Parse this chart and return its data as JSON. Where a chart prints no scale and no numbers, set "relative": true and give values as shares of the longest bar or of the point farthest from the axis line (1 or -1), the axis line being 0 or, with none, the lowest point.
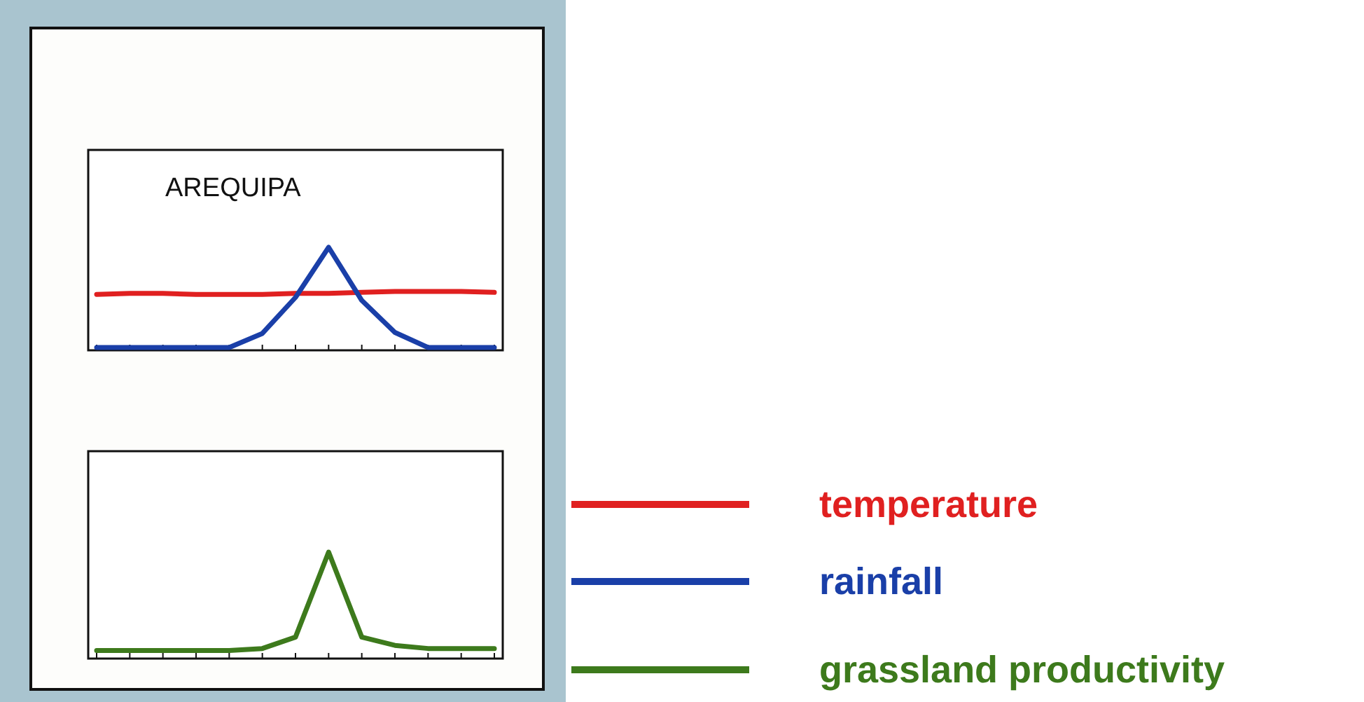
{
  "chart_data": [
    {
      "type": "line",
      "title": "AREQUIPA",
      "relative": true,
      "legend": "right",
      "categories": [
        null,
        null,
        null,
        null,
        null,
        null,
        null,
        null,
        null,
        null,
        null,
        null,
        null
      ],
      "series": [
        {
          "name": "temperature",
          "color": "#e02020",
          "values": [
            0.53,
            0.54,
            0.54,
            0.53,
            0.53,
            0.53,
            0.54,
            0.54,
            0.55,
            0.56,
            0.56,
            0.56,
            0.55
          ]
        },
        {
          "name": "rainfall",
          "color": "#1a3fa8",
          "values": [
            0,
            0,
            0,
            0,
            0,
            0.14,
            0.5,
            1,
            0.47,
            0.15,
            0,
            0,
            0
          ]
        }
      ]
    },
    {
      "type": "line",
      "relative": true,
      "legend": "right",
      "categories": [
        null,
        null,
        null,
        null,
        null,
        null,
        null,
        null,
        null,
        null,
        null,
        null,
        null
      ],
      "series": [
        {
          "name": "grassland productivity",
          "color": "#3d7a1c",
          "values": [
            0.05,
            0.05,
            0.05,
            0.05,
            0.05,
            0.07,
            0.18,
            1,
            0.18,
            0.1,
            0.07,
            0.07,
            0.07
          ]
        }
      ]
    }
  ]
}
